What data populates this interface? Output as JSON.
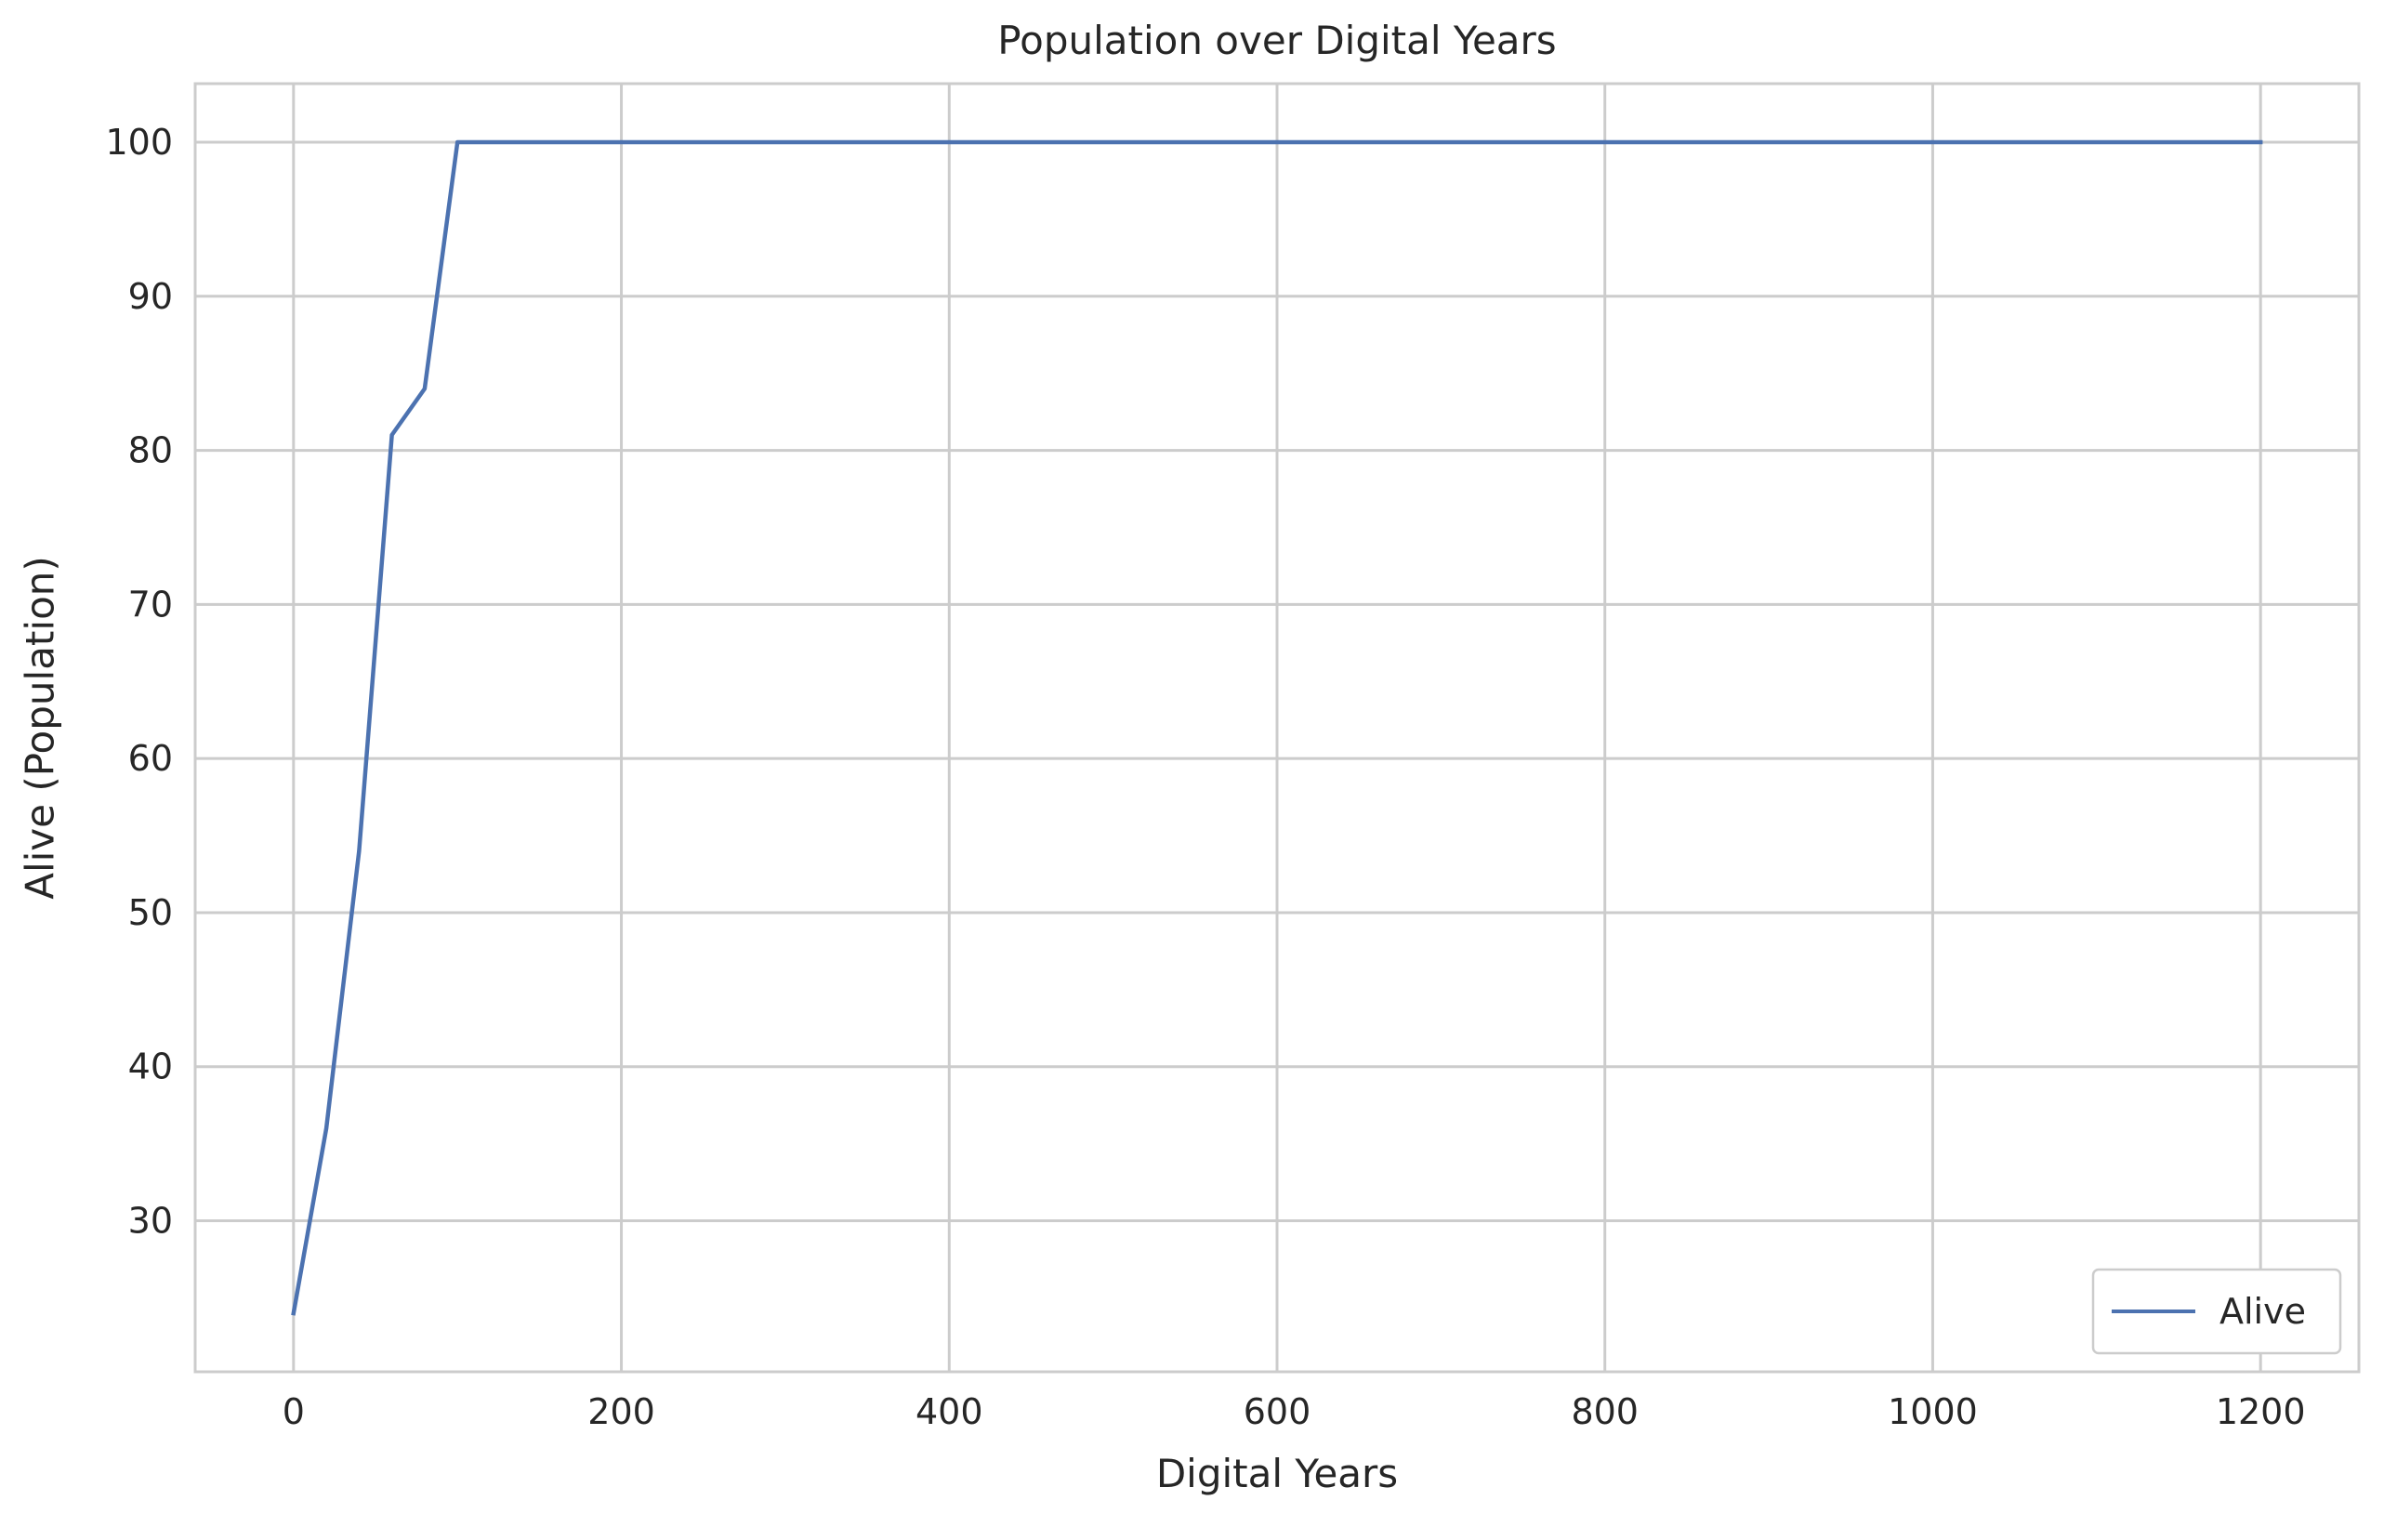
{
  "chart_data": {
    "type": "line",
    "title": "Population over Digital Years",
    "xlabel": "Digital Years",
    "ylabel": "Alive (Population)",
    "xlim": [
      -60,
      1260
    ],
    "ylim": [
      20.2,
      103.8
    ],
    "x_ticks": [
      0,
      200,
      400,
      600,
      800,
      1000,
      1200
    ],
    "y_ticks": [
      30,
      40,
      50,
      60,
      70,
      80,
      90,
      100
    ],
    "grid": true,
    "legend_position": "lower-right",
    "series": [
      {
        "name": "Alive",
        "color": "#4c72b0",
        "x": [
          0,
          20,
          40,
          60,
          80,
          100,
          120,
          140,
          160,
          180,
          200,
          300,
          400,
          500,
          600,
          700,
          800,
          900,
          1000,
          1100,
          1200
        ],
        "values": [
          24,
          36,
          54,
          81,
          84,
          100,
          100,
          100,
          100,
          100,
          100,
          100,
          100,
          100,
          100,
          100,
          100,
          100,
          100,
          100,
          100
        ]
      }
    ]
  }
}
